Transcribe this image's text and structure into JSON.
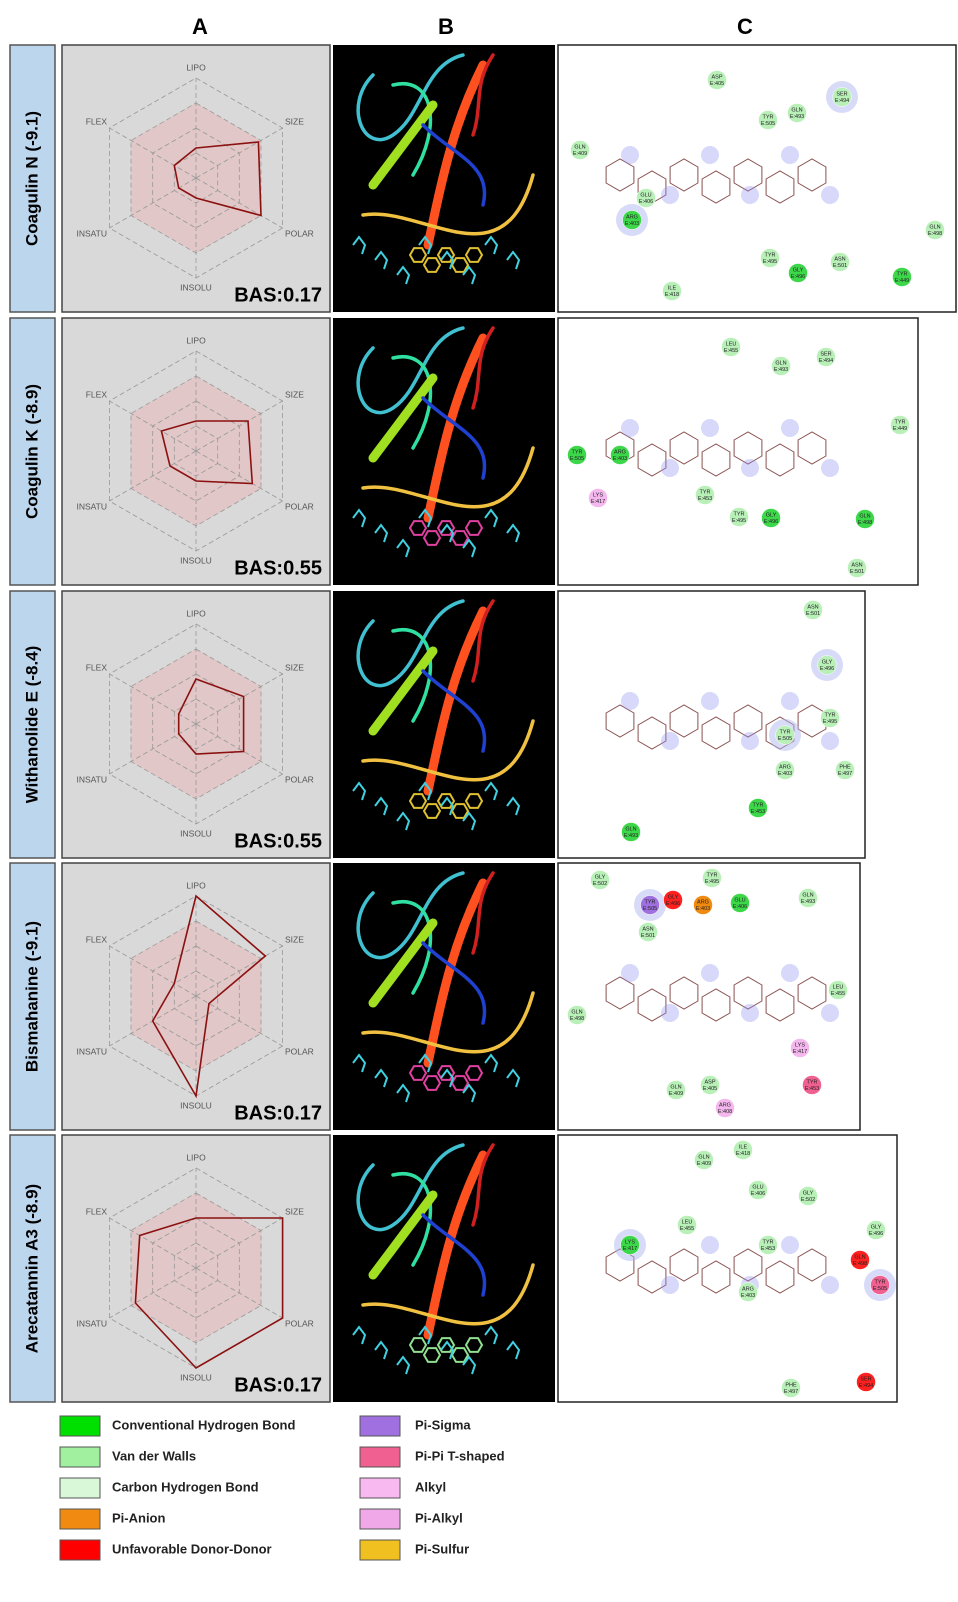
{
  "columns": [
    "A",
    "B",
    "C"
  ],
  "rows": [
    {
      "label": "Coagulin N (-9.1)",
      "radar": {
        "axes": [
          "LIPO",
          "SIZE",
          "POLAR",
          "INSOLU",
          "INSATU",
          "FLEX"
        ],
        "values": [
          0.3,
          0.72,
          0.75,
          0.2,
          0.2,
          0.25
        ],
        "rticks": [
          0.25,
          0.5,
          0.75,
          1
        ],
        "bas": "BAS:0.17"
      },
      "residues": [
        {
          "name": "ASP",
          "id": "E:405",
          "color": "#b8f0b8"
        },
        {
          "name": "TYR",
          "id": "E:505",
          "color": "#b8f0b8"
        },
        {
          "name": "GLN",
          "id": "E:493",
          "color": "#b8f0b8"
        },
        {
          "name": "SER",
          "id": "E:494",
          "color": "#b8f0b8"
        },
        {
          "name": "GLN",
          "id": "E:409",
          "color": "#b8f0b8"
        },
        {
          "name": "GLU",
          "id": "E:406",
          "color": "#b8f0b8"
        },
        {
          "name": "ARG",
          "id": "E:403",
          "color": "#3cd84a"
        },
        {
          "name": "TYR",
          "id": "E:495",
          "color": "#b8f0b8"
        },
        {
          "name": "GLY",
          "id": "E:496",
          "color": "#3cd84a"
        },
        {
          "name": "ASN",
          "id": "E:501",
          "color": "#b8f0b8"
        },
        {
          "name": "TYR",
          "id": "E:449",
          "color": "#3cd84a"
        },
        {
          "name": "GLN",
          "id": "E:498",
          "color": "#b8f0b8"
        },
        {
          "name": "ILE",
          "id": "E:418",
          "color": "#b8f0b8"
        }
      ]
    },
    {
      "label": "Coagulin K (-8.9)",
      "radar": {
        "axes": [
          "LIPO",
          "SIZE",
          "POLAR",
          "INSOLU",
          "INSATU",
          "FLEX"
        ],
        "values": [
          0.3,
          0.6,
          0.65,
          0.3,
          0.3,
          0.4
        ],
        "rticks": [
          0.25,
          0.5,
          0.75,
          1
        ],
        "bas": "BAS:0.55"
      },
      "residues": [
        {
          "name": "LEU",
          "id": "E:455",
          "color": "#b8f0b8"
        },
        {
          "name": "GLN",
          "id": "E:493",
          "color": "#b8f0b8"
        },
        {
          "name": "SER",
          "id": "E:494",
          "color": "#b8f0b8"
        },
        {
          "name": "TYR",
          "id": "E:449",
          "color": "#b8f0b8"
        },
        {
          "name": "TYR",
          "id": "E:505",
          "color": "#3cd84a"
        },
        {
          "name": "ARG",
          "id": "E:403",
          "color": "#3cd84a"
        },
        {
          "name": "LYS",
          "id": "E:417",
          "color": "#f4b8ee"
        },
        {
          "name": "TYR",
          "id": "E:453",
          "color": "#b8f0b8"
        },
        {
          "name": "TYR",
          "id": "E:495",
          "color": "#b8f0b8"
        },
        {
          "name": "GLY",
          "id": "E:496",
          "color": "#3cd84a"
        },
        {
          "name": "GLN",
          "id": "E:498",
          "color": "#3cd84a"
        },
        {
          "name": "ASN",
          "id": "E:501",
          "color": "#b8f0b8"
        }
      ]
    },
    {
      "label": "Withanolide E (-8.4)",
      "radar": {
        "axes": [
          "LIPO",
          "SIZE",
          "POLAR",
          "INSOLU",
          "INSATU",
          "FLEX"
        ],
        "values": [
          0.45,
          0.55,
          0.55,
          0.3,
          0.2,
          0.2
        ],
        "rticks": [
          0.25,
          0.5,
          0.75,
          1
        ],
        "bas": "BAS:0.55"
      },
      "residues": [
        {
          "name": "ASN",
          "id": "E:501",
          "color": "#b8f0b8"
        },
        {
          "name": "GLY",
          "id": "E:496",
          "color": "#b8f0b8"
        },
        {
          "name": "TYR",
          "id": "E:495",
          "color": "#b8f0b8"
        },
        {
          "name": "TYR",
          "id": "E:505",
          "color": "#b8f0b8"
        },
        {
          "name": "ARG",
          "id": "E:403",
          "color": "#b8f0b8"
        },
        {
          "name": "PHE",
          "id": "E:497",
          "color": "#b8f0b8"
        },
        {
          "name": "TYR",
          "id": "E:453",
          "color": "#3cd84a"
        },
        {
          "name": "GLN",
          "id": "E:493",
          "color": "#3cd84a"
        }
      ]
    },
    {
      "label": "Bismahanine (-9.1)",
      "radar": {
        "axes": [
          "LIPO",
          "SIZE",
          "POLAR",
          "INSOLU",
          "INSATU",
          "FLEX"
        ],
        "values": [
          1,
          0.8,
          0.15,
          1,
          0.5,
          0.25
        ],
        "rticks": [
          0.25,
          0.5,
          0.75,
          1
        ],
        "bas": "BAS:0.17"
      },
      "residues": [
        {
          "name": "GLY",
          "id": "E:502",
          "color": "#b8f0b8"
        },
        {
          "name": "TYR",
          "id": "E:495",
          "color": "#b8f0b8"
        },
        {
          "name": "TYR",
          "id": "E:505",
          "color": "#a070e0"
        },
        {
          "name": "GLY",
          "id": "E:496",
          "color": "#ff2020"
        },
        {
          "name": "ARG",
          "id": "E:403",
          "color": "#f08a10"
        },
        {
          "name": "GLU",
          "id": "E:406",
          "color": "#3cd84a"
        },
        {
          "name": "ASN",
          "id": "E:501",
          "color": "#b8f0b8"
        },
        {
          "name": "GLN",
          "id": "E:493",
          "color": "#b8f0b8"
        },
        {
          "name": "LEU",
          "id": "E:455",
          "color": "#b8f0b8"
        },
        {
          "name": "GLN",
          "id": "E:498",
          "color": "#b8f0b8"
        },
        {
          "name": "LYS",
          "id": "E:417",
          "color": "#f4b8ee"
        },
        {
          "name": "TYR",
          "id": "E:453",
          "color": "#f06090"
        },
        {
          "name": "GLN",
          "id": "E:409",
          "color": "#b8f0b8"
        },
        {
          "name": "ASP",
          "id": "E:405",
          "color": "#b8f0b8"
        },
        {
          "name": "ARG",
          "id": "E:408",
          "color": "#f4b8ee"
        }
      ]
    },
    {
      "label": "Arecatannin A3 (-8.9)",
      "radar": {
        "axes": [
          "LIPO",
          "SIZE",
          "POLAR",
          "INSOLU",
          "INSATU",
          "FLEX"
        ],
        "values": [
          0.5,
          1,
          1,
          1,
          0.7,
          0.65
        ],
        "rticks": [
          0.25,
          0.5,
          0.75,
          1
        ],
        "bas": "BAS:0.17"
      },
      "residues": [
        {
          "name": "GLN",
          "id": "E:409",
          "color": "#b8f0b8"
        },
        {
          "name": "ILE",
          "id": "E:418",
          "color": "#b8f0b8"
        },
        {
          "name": "GLU",
          "id": "E:406",
          "color": "#b8f0b8"
        },
        {
          "name": "GLY",
          "id": "E:502",
          "color": "#b8f0b8"
        },
        {
          "name": "LEU",
          "id": "E:455",
          "color": "#b8f0b8"
        },
        {
          "name": "GLY",
          "id": "E:496",
          "color": "#b8f0b8"
        },
        {
          "name": "LYS",
          "id": "E:417",
          "color": "#3cd84a"
        },
        {
          "name": "TYR",
          "id": "E:453",
          "color": "#b8f0b8"
        },
        {
          "name": "GLN",
          "id": "E:498",
          "color": "#ff2020"
        },
        {
          "name": "TYR",
          "id": "E:505",
          "color": "#f06090"
        },
        {
          "name": "ARG",
          "id": "E:403",
          "color": "#b8f0b8"
        },
        {
          "name": "PHE",
          "id": "E:497",
          "color": "#b8f0b8"
        },
        {
          "name": "SER",
          "id": "E:494",
          "color": "#ff2020"
        }
      ]
    }
  ],
  "legend": [
    {
      "name": "Conventional Hydrogen Bond",
      "color": "#00e000"
    },
    {
      "name": "Van der Walls",
      "color": "#a0f0a0"
    },
    {
      "name": "Carbon Hydrogen Bond",
      "color": "#d8f8d8"
    },
    {
      "name": "Pi-Anion",
      "color": "#f08a10"
    },
    {
      "name": "Unfavorable Donor-Donor",
      "color": "#ff0000"
    },
    {
      "name": "Pi-Sigma",
      "color": "#a070e0"
    },
    {
      "name": "Pi-Pi T-shaped",
      "color": "#f06090"
    },
    {
      "name": "Alkyl",
      "color": "#f8b8f0"
    },
    {
      "name": "Pi-Alkyl",
      "color": "#f0a8e8"
    },
    {
      "name": "Pi-Sulfur",
      "color": "#f0c020"
    }
  ]
}
